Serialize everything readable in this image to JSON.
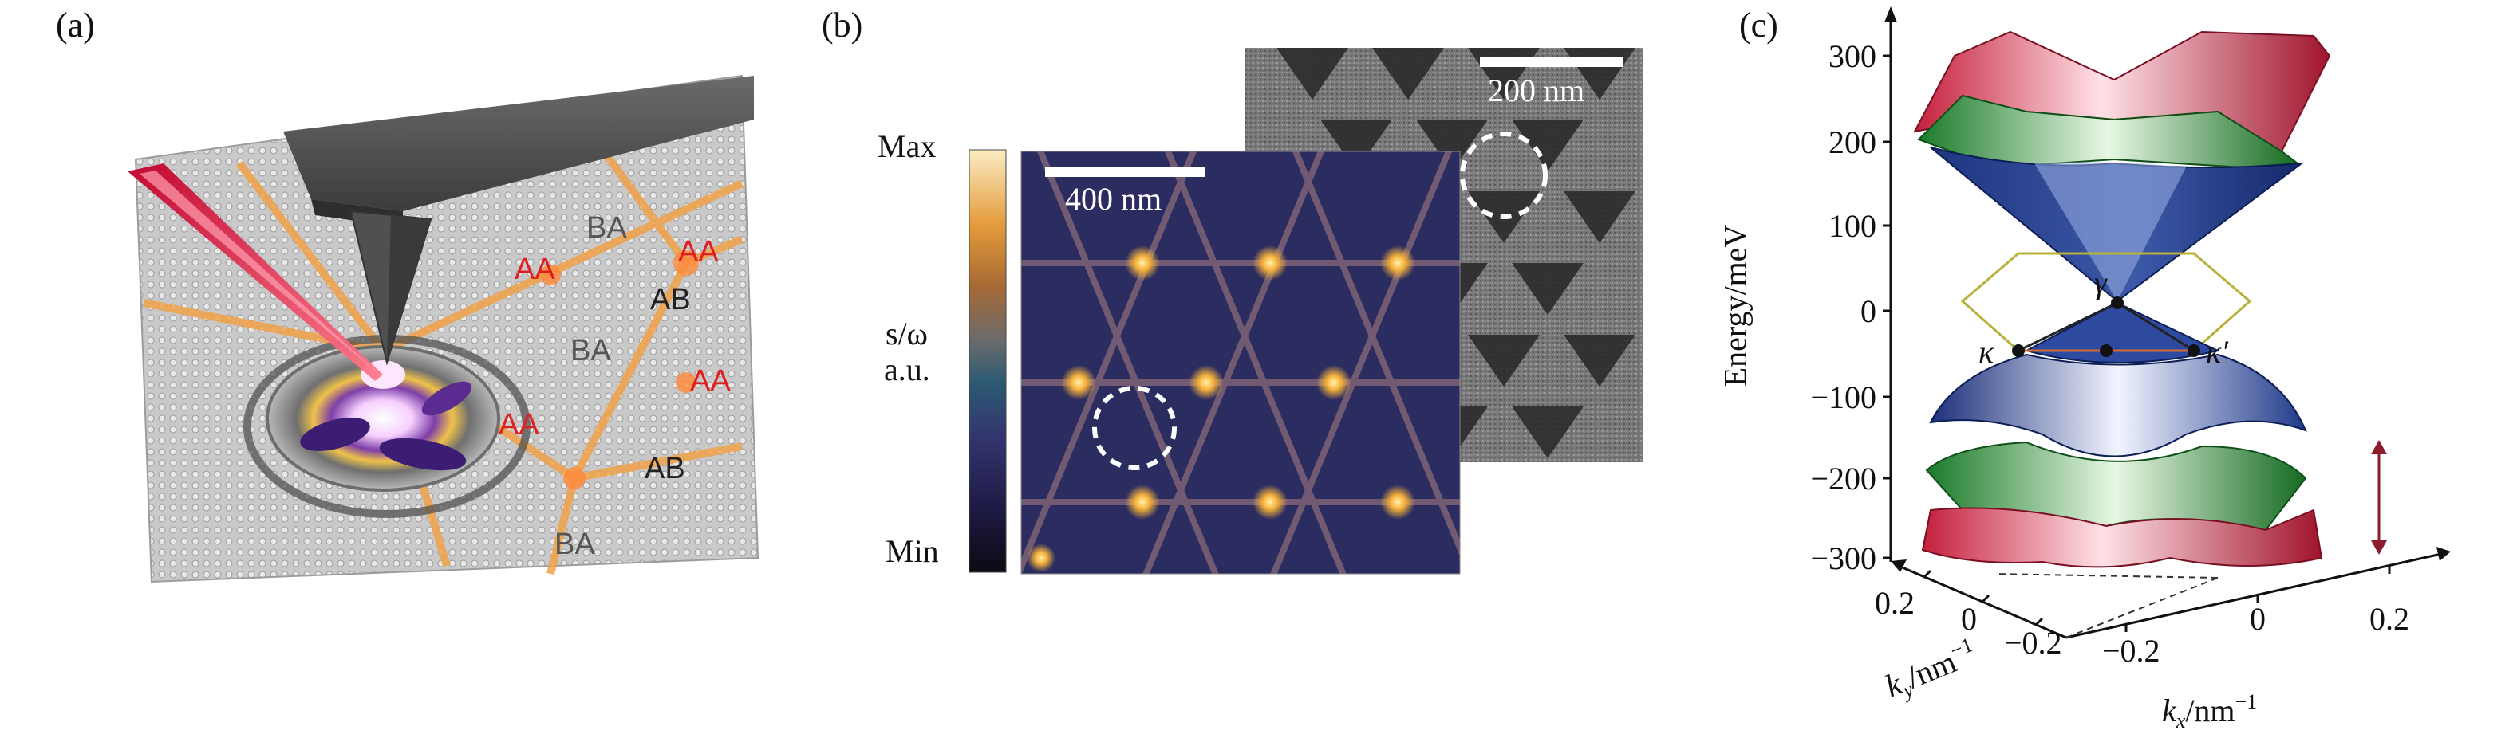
{
  "panels": {
    "a": {
      "label": "(a)",
      "regions": [
        {
          "text": "BA",
          "color": "#555555"
        },
        {
          "text": "AA",
          "color": "#e02020"
        },
        {
          "text": "AA",
          "color": "#e02020"
        },
        {
          "text": "AB",
          "color": "#222222"
        },
        {
          "text": "BA",
          "color": "#555555"
        },
        {
          "text": "AA",
          "color": "#e02020"
        },
        {
          "text": "AA",
          "color": "#e02020"
        },
        {
          "text": "AB",
          "color": "#222222"
        },
        {
          "text": "BA",
          "color": "#555555"
        }
      ]
    },
    "b": {
      "label": "(b)",
      "colorbar": {
        "max": "Max",
        "min": "Min",
        "quantity": "s/ω",
        "unit": "a.u."
      },
      "scalebar_left": "400 nm",
      "scalebar_right": "200 nm"
    },
    "c": {
      "label": "(c)",
      "ylabel": "Energy/meV",
      "yticks": [
        "300",
        "200",
        "100",
        "0",
        "−100",
        "−200",
        "−300"
      ],
      "ky_label": "k",
      "ky_sub": "y",
      "ky_unit": "/nm",
      "ky_sup": "−1",
      "kx_label": "k",
      "kx_sub": "x",
      "kx_unit": "/nm",
      "kx_sup": "−1",
      "ky_ticks": [
        "0.2",
        "0",
        "−0.2"
      ],
      "kx_ticks": [
        "−0.2",
        "0",
        "0.2"
      ],
      "points": {
        "gamma": "γ",
        "kappa": "κ",
        "kappa_prime": "κ′"
      }
    }
  }
}
